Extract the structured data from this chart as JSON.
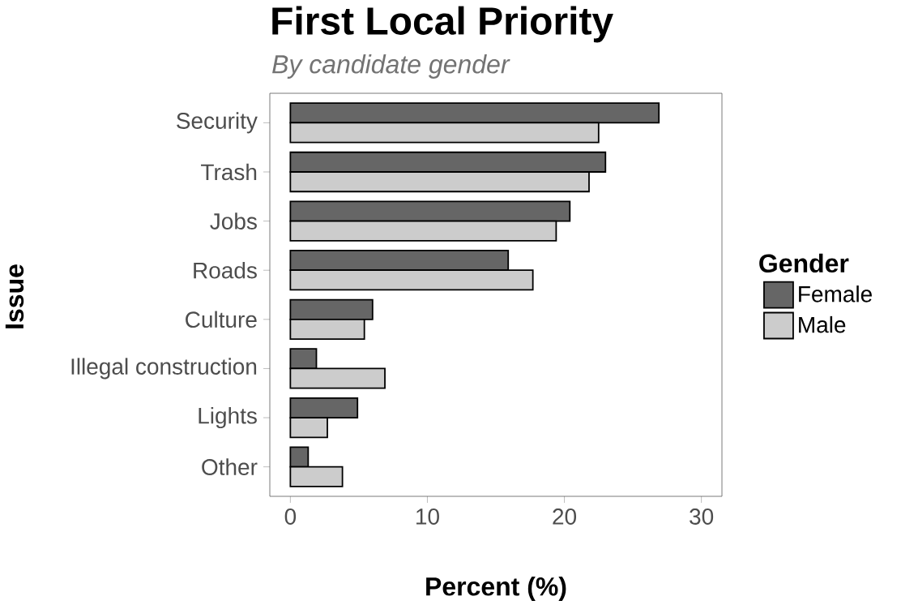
{
  "chart_data": {
    "type": "bar",
    "orientation": "horizontal",
    "title": "First Local Priority",
    "subtitle": "By candidate gender",
    "xlabel": "Percent (%)",
    "ylabel": "Issue",
    "legend_title": "Gender",
    "legend": "right",
    "categories": [
      "Security",
      "Trash",
      "Jobs",
      "Roads",
      "Culture",
      "Illegal construction",
      "Lights",
      "Other"
    ],
    "series": [
      {
        "name": "Female",
        "color": "#666666",
        "values": [
          26.9,
          23.0,
          20.4,
          15.9,
          6.0,
          1.9,
          4.9,
          1.3
        ]
      },
      {
        "name": "Male",
        "color": "#cccccc",
        "values": [
          22.5,
          21.8,
          19.4,
          17.7,
          5.4,
          6.9,
          2.7,
          3.8
        ]
      }
    ],
    "xlim": [
      -1.5,
      31.5
    ],
    "xticks": [
      0,
      10,
      20,
      30
    ]
  }
}
